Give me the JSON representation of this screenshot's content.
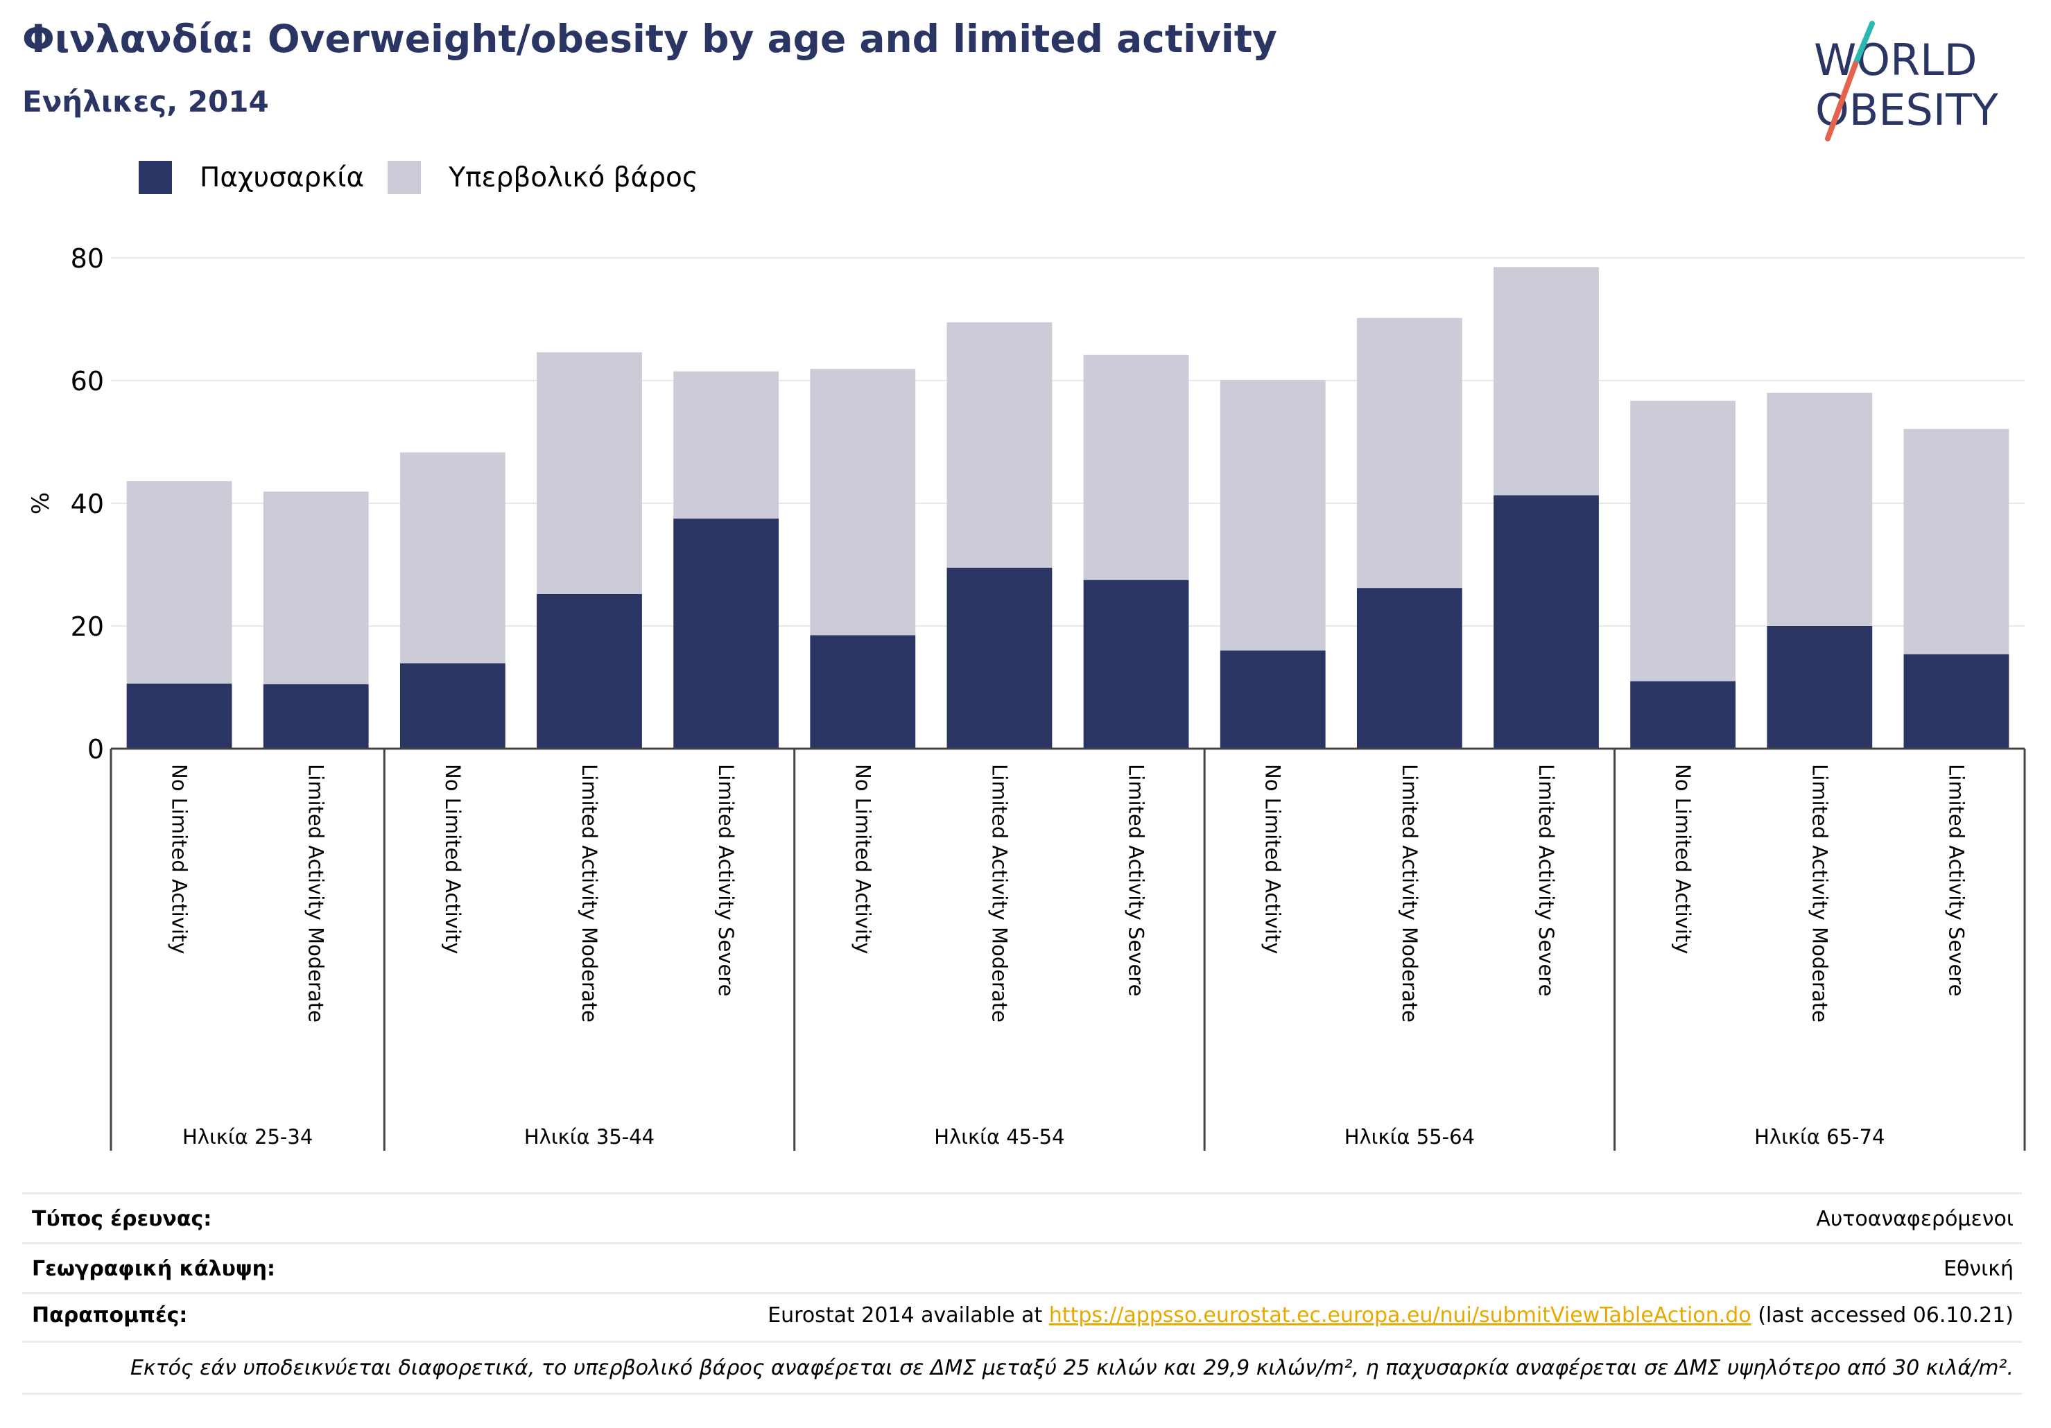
{
  "header": {
    "title": "Φινλανδία: Overweight/obesity by age and limited activity",
    "subtitle": "Ενήλικες, 2014"
  },
  "logo": {
    "line1": "WORLD",
    "line2": "OBESITY",
    "accent_colors": [
      "#2bb8b0",
      "#e3634f"
    ]
  },
  "colors": {
    "obesity": "#2a3563",
    "overweight": "#cbccd8",
    "title": "#2a3563",
    "link": "#e8a800"
  },
  "chart_data": {
    "type": "bar",
    "stacked": true,
    "ylabel": "%",
    "ylim": [
      0,
      80
    ],
    "yticks": [
      0,
      20,
      40,
      60,
      80
    ],
    "grid": true,
    "legend_position": "top-left",
    "groups": [
      {
        "label": "Ηλικία 25-34",
        "categories": [
          "No Limited Activity",
          "Limited Activity Moderate"
        ]
      },
      {
        "label": "Ηλικία 35-44",
        "categories": [
          "No Limited Activity",
          "Limited Activity Moderate",
          "Limited Activity Severe"
        ]
      },
      {
        "label": "Ηλικία 45-54",
        "categories": [
          "No Limited Activity",
          "Limited Activity Moderate",
          "Limited Activity Severe"
        ]
      },
      {
        "label": "Ηλικία 55-64",
        "categories": [
          "No Limited Activity",
          "Limited Activity Moderate",
          "Limited Activity Severe"
        ]
      },
      {
        "label": "Ηλικία 65-74",
        "categories": [
          "No Limited Activity",
          "Limited Activity Moderate",
          "Limited Activity Severe"
        ]
      }
    ],
    "series": [
      {
        "name": "Παχυσαρκία",
        "values": [
          10.6,
          10.5,
          13.9,
          25.2,
          37.5,
          18.5,
          29.5,
          27.5,
          16.0,
          26.2,
          41.3,
          11.0,
          20.0,
          15.4
        ]
      },
      {
        "name": "Υπερβολικό βάρος",
        "values": [
          33.0,
          31.4,
          34.4,
          39.4,
          24.0,
          43.4,
          40.0,
          36.7,
          44.1,
          44.0,
          37.2,
          45.7,
          38.0,
          36.7
        ]
      }
    ]
  },
  "info": {
    "survey_label": "Τύπος έρευνας:",
    "survey_value": "Αυτοαναφερόμενοι",
    "coverage_label": "Γεωγραφική κάλυψη:",
    "coverage_value": "Εθνική",
    "refs_label": "Παραπομπές:",
    "refs_prefix": "Eurostat 2014 available at",
    "refs_link": "https://appsso.eurostat.ec.europa.eu/nui/submitViewTableAction.do",
    "refs_suffix": "(last accessed 06.10.21)",
    "note": "Εκτός εάν υποδεικνύεται διαφορετικά, το υπερβολικό βάρος αναφέρεται σε ΔΜΣ μεταξύ 25 κιλών και 29,9 κιλών/m², η παχυσαρκία αναφέρεται σε ΔΜΣ υψηλότερο από 30 κιλά/m²."
  }
}
